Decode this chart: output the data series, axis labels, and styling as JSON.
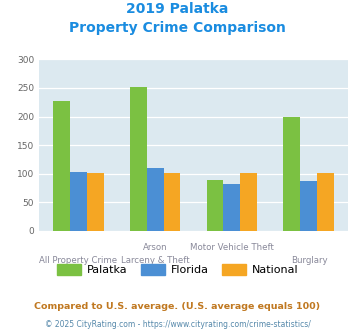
{
  "title_line1": "2019 Palatka",
  "title_line2": "Property Crime Comparison",
  "title_color": "#1a8ce0",
  "x_labels_top": [
    "",
    "Arson",
    "Motor Vehicle Theft",
    ""
  ],
  "x_labels_bottom": [
    "All Property Crime",
    "Larceny & Theft",
    "",
    "Burglary"
  ],
  "palatka_values": [
    227,
    252,
    90,
    200
  ],
  "florida_values": [
    103,
    110,
    83,
    88
  ],
  "national_values": [
    101,
    101,
    102,
    101
  ],
  "palatka_color": "#7bc142",
  "florida_color": "#4b8fd4",
  "national_color": "#f5a623",
  "bg_color": "#dce9f0",
  "ylim": [
    0,
    300
  ],
  "yticks": [
    0,
    50,
    100,
    150,
    200,
    250,
    300
  ],
  "legend_labels": [
    "Palatka",
    "Florida",
    "National"
  ],
  "footnote1": "Compared to U.S. average. (U.S. average equals 100)",
  "footnote2": "© 2025 CityRating.com - https://www.cityrating.com/crime-statistics/",
  "footnote1_color": "#c07820",
  "footnote2_color": "#5588aa"
}
